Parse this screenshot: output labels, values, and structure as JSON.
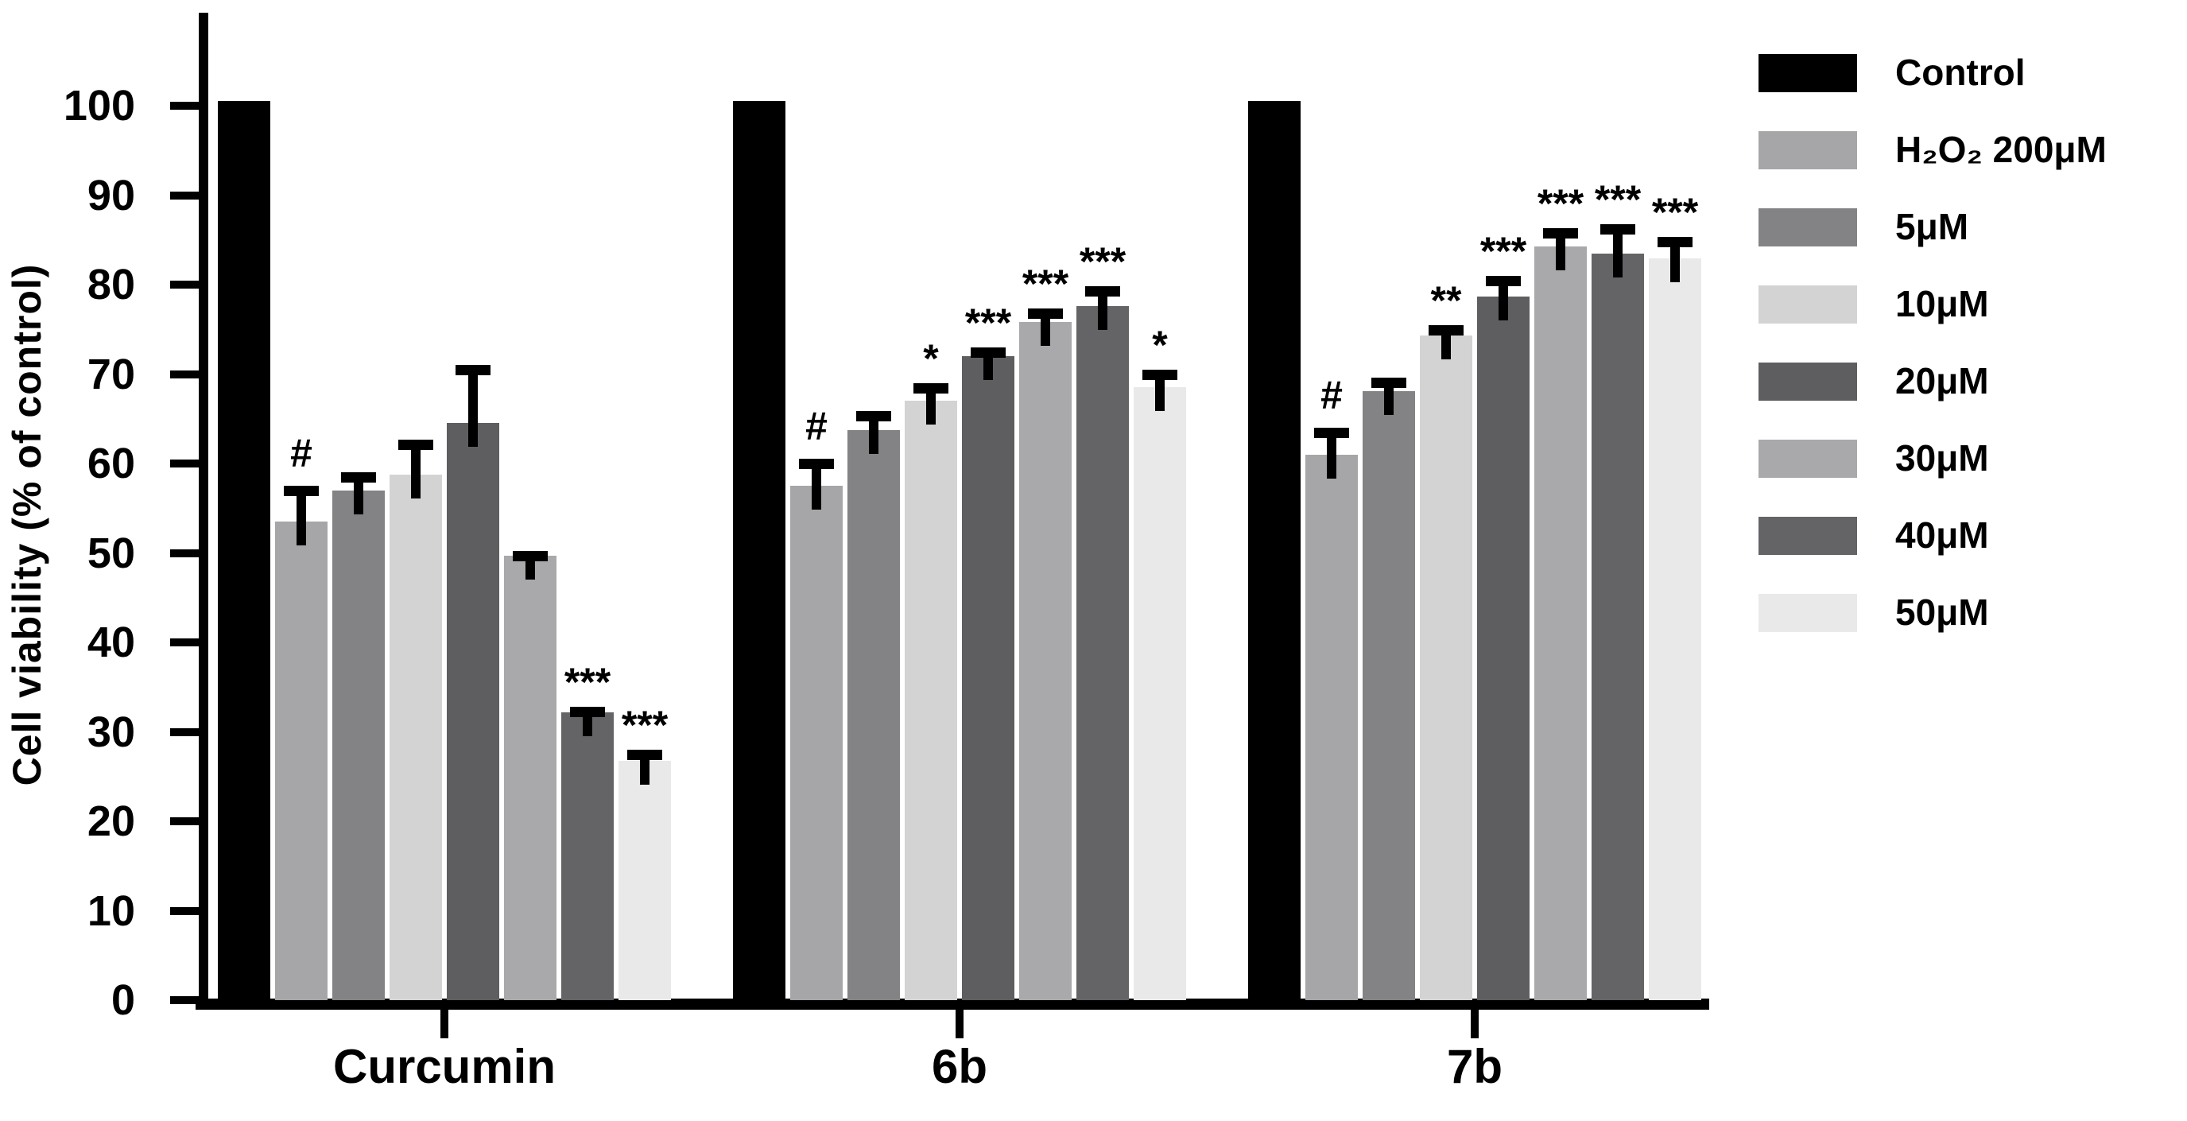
{
  "chart_data": {
    "type": "bar",
    "title": "",
    "xlabel": "",
    "ylabel": "Cell viability (% of control)",
    "ylim": [
      0,
      100
    ],
    "yticks": [
      0,
      10,
      20,
      30,
      40,
      50,
      60,
      70,
      80,
      90,
      100
    ],
    "grid": false,
    "legend_position": "right",
    "categories": [
      "Curcumin",
      "6b",
      "7b"
    ],
    "sig_note_symbols": [
      "#",
      "*",
      "**",
      "***"
    ],
    "legend": [
      {
        "label": "Control",
        "color": "#000000"
      },
      {
        "label": "H₂O₂ 200μM",
        "color": "#a6a6a9"
      },
      {
        "label": "5μM",
        "color": "#838386"
      },
      {
        "label": "10μM",
        "color": "#d3d3d3"
      },
      {
        "label": "20μM",
        "color": "#5e5e61"
      },
      {
        "label": "30μM",
        "color": "#a9a9ac"
      },
      {
        "label": "40μM",
        "color": "#646467"
      },
      {
        "label": "50μM",
        "color": "#e9e9e9"
      }
    ],
    "groups": [
      {
        "label": "Curcumin",
        "bars": [
          {
            "series": "Control",
            "value": 100.5,
            "err": 0,
            "sig": ""
          },
          {
            "series": "H₂O₂ 200μM",
            "value": 53.5,
            "err": 4.0,
            "sig": "#"
          },
          {
            "series": "5μM",
            "value": 57.0,
            "err": 2.0,
            "sig": ""
          },
          {
            "series": "10μM",
            "value": 58.8,
            "err": 3.9,
            "sig": ""
          },
          {
            "series": "20μM",
            "value": 64.5,
            "err": 6.5,
            "sig": ""
          },
          {
            "series": "30μM",
            "value": 49.7,
            "err": 0.5,
            "sig": ""
          },
          {
            "series": "40μM",
            "value": 32.2,
            "err": 0.6,
            "sig": "***"
          },
          {
            "series": "50μM",
            "value": 26.8,
            "err": 1.2,
            "sig": "***"
          }
        ]
      },
      {
        "label": "6b",
        "bars": [
          {
            "series": "Control",
            "value": 100.5,
            "err": 0,
            "sig": ""
          },
          {
            "series": "H₂O₂ 200μM",
            "value": 57.5,
            "err": 3.0,
            "sig": "#"
          },
          {
            "series": "5μM",
            "value": 63.7,
            "err": 2.2,
            "sig": ""
          },
          {
            "series": "10μM",
            "value": 67.0,
            "err": 2.0,
            "sig": "*"
          },
          {
            "series": "20μM",
            "value": 72.0,
            "err": 1.0,
            "sig": "***"
          },
          {
            "series": "30μM",
            "value": 75.8,
            "err": 1.5,
            "sig": "***"
          },
          {
            "series": "40μM",
            "value": 77.6,
            "err": 2.2,
            "sig": "***"
          },
          {
            "series": "50μM",
            "value": 68.5,
            "err": 2.0,
            "sig": "*"
          }
        ]
      },
      {
        "label": "7b",
        "bars": [
          {
            "series": "Control",
            "value": 100.5,
            "err": 0,
            "sig": ""
          },
          {
            "series": "H₂O₂ 200μM",
            "value": 61.0,
            "err": 3.0,
            "sig": "#"
          },
          {
            "series": "5μM",
            "value": 68.1,
            "err": 1.5,
            "sig": ""
          },
          {
            "series": "10μM",
            "value": 74.3,
            "err": 1.2,
            "sig": "**"
          },
          {
            "series": "20μM",
            "value": 78.7,
            "err": 2.3,
            "sig": "***"
          },
          {
            "series": "30μM",
            "value": 84.3,
            "err": 2.0,
            "sig": "***"
          },
          {
            "series": "40μM",
            "value": 83.5,
            "err": 3.3,
            "sig": "***"
          },
          {
            "series": "50μM",
            "value": 82.9,
            "err": 2.4,
            "sig": "***"
          }
        ]
      }
    ]
  }
}
